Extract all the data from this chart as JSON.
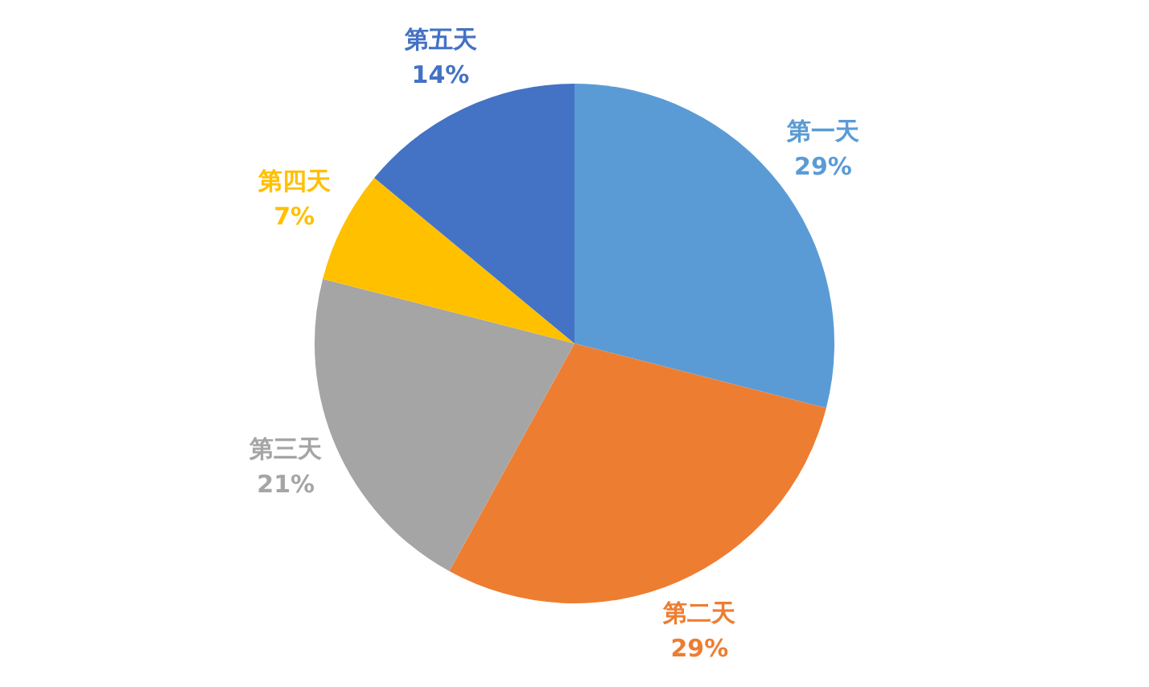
{
  "chart_data": {
    "type": "pie",
    "categories": [
      "第一天",
      "第二天",
      "第三天",
      "第四天",
      "第五天"
    ],
    "values": [
      29,
      29,
      21,
      7,
      14
    ],
    "value_labels": [
      "29%",
      "29%",
      "21%",
      "7%",
      "14%"
    ],
    "colors": [
      "#5b9bd5",
      "#ed7d31",
      "#a5a5a5",
      "#ffc000",
      "#4472c4"
    ],
    "legend": false
  }
}
